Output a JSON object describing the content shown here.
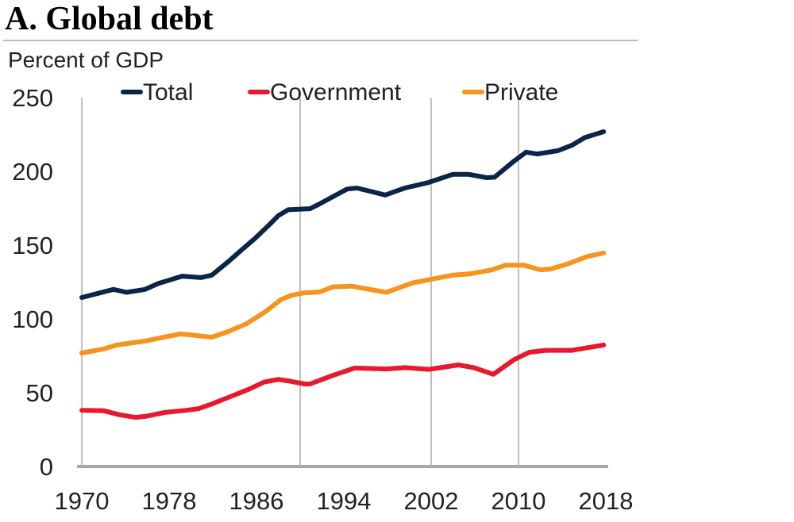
{
  "chart_data": {
    "type": "line",
    "title": "A. Global debt",
    "ylabel": "Percent of GDP",
    "xlabel": "",
    "xlim": [
      1970,
      2018
    ],
    "ylim": [
      0,
      250
    ],
    "yticks": [
      0,
      50,
      100,
      150,
      200,
      250
    ],
    "xticks": [
      1970,
      1978,
      1986,
      1994,
      2002,
      2010,
      2018
    ],
    "vertical_gridlines": [
      1990,
      2002,
      2010
    ],
    "legend_position": "top",
    "series": [
      {
        "name": "Total",
        "color": "#0b2549",
        "points": [
          [
            1970,
            114.5
          ],
          [
            1972.9,
            120
          ],
          [
            1974.1,
            118
          ],
          [
            1975.8,
            120
          ],
          [
            1977,
            124
          ],
          [
            1979.2,
            129
          ],
          [
            1980.9,
            128
          ],
          [
            1981.9,
            129.6
          ],
          [
            1983.4,
            138.7
          ],
          [
            1984.8,
            147.8
          ],
          [
            1985.9,
            154.8
          ],
          [
            1987.2,
            164
          ],
          [
            1988,
            170
          ],
          [
            1988.9,
            174
          ],
          [
            1990.9,
            174.7
          ],
          [
            1991.8,
            178
          ],
          [
            1994.3,
            188
          ],
          [
            1995.2,
            188.7
          ],
          [
            1997.8,
            184
          ],
          [
            1999.6,
            188.7
          ],
          [
            2001.8,
            192.5
          ],
          [
            2004,
            198
          ],
          [
            2005.4,
            198
          ],
          [
            2007.1,
            195.7
          ],
          [
            2007.8,
            196
          ],
          [
            2009.6,
            207
          ],
          [
            2010.7,
            213
          ],
          [
            2011.7,
            211.8
          ],
          [
            2013.6,
            214
          ],
          [
            2014.9,
            217.7
          ],
          [
            2016.1,
            223
          ],
          [
            2017.8,
            226.9
          ]
        ]
      },
      {
        "name": "Government",
        "color": "#e8192c",
        "points": [
          [
            1970,
            38
          ],
          [
            1972,
            37.8
          ],
          [
            1973.4,
            35.1
          ],
          [
            1974.9,
            33.3
          ],
          [
            1975.8,
            33.9
          ],
          [
            1977.6,
            36.6
          ],
          [
            1979.5,
            38
          ],
          [
            1980.7,
            39.2
          ],
          [
            1981.9,
            42.3
          ],
          [
            1983.6,
            47.3
          ],
          [
            1985.3,
            52.3
          ],
          [
            1986.7,
            57.2
          ],
          [
            1988,
            59
          ],
          [
            1988.9,
            58
          ],
          [
            1990.4,
            55.9
          ],
          [
            1990.9,
            55.9
          ],
          [
            1992.3,
            59.8
          ],
          [
            1993,
            61.7
          ],
          [
            1995,
            66.7
          ],
          [
            1997.9,
            66.1
          ],
          [
            1999.6,
            67
          ],
          [
            2001.8,
            65.8
          ],
          [
            2004.5,
            68.8
          ],
          [
            2005.9,
            67
          ],
          [
            2007.7,
            62.5
          ],
          [
            2009.6,
            72.4
          ],
          [
            2011,
            77.4
          ],
          [
            2012.5,
            78.7
          ],
          [
            2014.9,
            78.7
          ],
          [
            2017.8,
            82.3
          ]
        ]
      },
      {
        "name": "Private",
        "color": "#f7941d",
        "points": [
          [
            1970,
            76.9
          ],
          [
            1972,
            79.6
          ],
          [
            1973.2,
            82.3
          ],
          [
            1975.8,
            85
          ],
          [
            1977.1,
            87
          ],
          [
            1979,
            89.8
          ],
          [
            1980,
            89.2
          ],
          [
            1981.9,
            87.6
          ],
          [
            1983.4,
            91.4
          ],
          [
            1985.1,
            96.8
          ],
          [
            1986.8,
            104.8
          ],
          [
            1988.2,
            112.9
          ],
          [
            1989.2,
            116
          ],
          [
            1990.4,
            117.7
          ],
          [
            1991.8,
            118.3
          ],
          [
            1993,
            121.7
          ],
          [
            1994.7,
            122.2
          ],
          [
            1997.9,
            118
          ],
          [
            2000.3,
            124.4
          ],
          [
            2001.9,
            126.7
          ],
          [
            2004,
            129.7
          ],
          [
            2005.6,
            130.6
          ],
          [
            2007.6,
            133.3
          ],
          [
            2008.8,
            136.4
          ],
          [
            2010.5,
            136.4
          ],
          [
            2012,
            133.3
          ],
          [
            2012.9,
            133.7
          ],
          [
            2014.4,
            137
          ],
          [
            2016.3,
            142.3
          ],
          [
            2017.8,
            144.6
          ]
        ]
      }
    ]
  }
}
